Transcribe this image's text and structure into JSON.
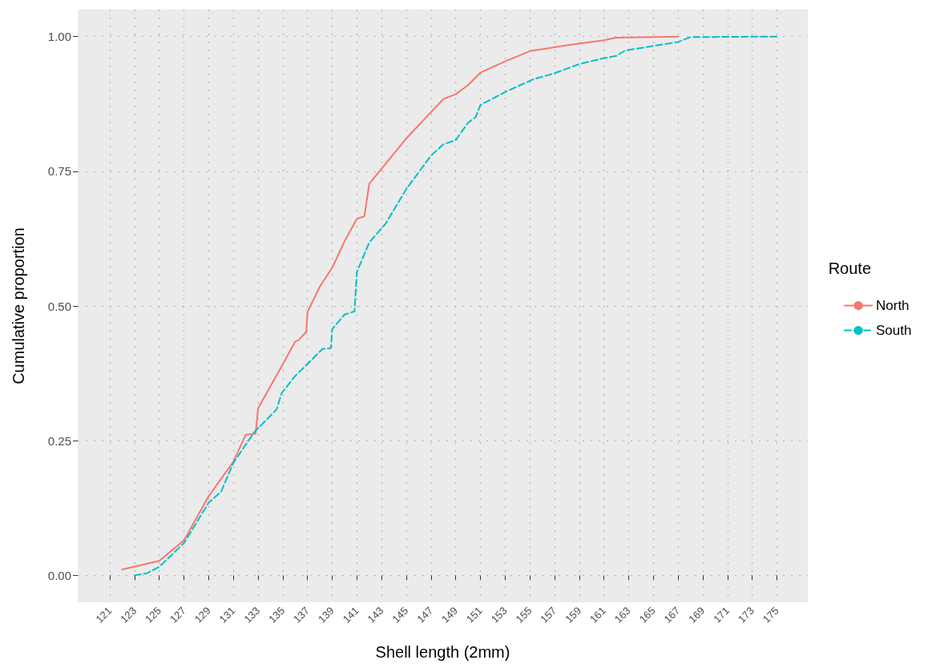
{
  "chart_data": {
    "type": "line",
    "xlabel": "Shell length (2mm)",
    "ylabel": "Cumulative proportion",
    "legend_title": "Route",
    "legend": "right",
    "grid": true,
    "marker": "none",
    "xlim": [
      118.4,
      177.5
    ],
    "xticks": [
      121,
      123,
      125,
      127,
      129,
      131,
      133,
      135,
      137,
      139,
      141,
      143,
      145,
      147,
      149,
      151,
      153,
      155,
      157,
      159,
      161,
      163,
      165,
      167,
      169,
      171,
      173,
      175
    ],
    "ylim": [
      -0.05,
      1.05
    ],
    "yticks": [
      {
        "value": 0,
        "label": "0.00"
      },
      {
        "value": 0.25,
        "label": "0.25"
      },
      {
        "value": 0.5,
        "label": "0.50"
      },
      {
        "value": 0.75,
        "label": "0.75"
      },
      {
        "value": 1,
        "label": "1.00"
      }
    ],
    "series": [
      {
        "name": "North",
        "color": "#f8766d",
        "line_style": "solid",
        "x": [
          122,
          125,
          127,
          129,
          131,
          132,
          132.8,
          133,
          135,
          136,
          136.3,
          136.9,
          137,
          138,
          139,
          140,
          141,
          141.6,
          142,
          145,
          148,
          149,
          150,
          151,
          153,
          155,
          157,
          158,
          161,
          162,
          167
        ],
        "values": [
          0.011,
          0.027,
          0.065,
          0.147,
          0.211,
          0.261,
          0.263,
          0.31,
          0.392,
          0.434,
          0.437,
          0.452,
          0.489,
          0.536,
          0.571,
          0.62,
          0.662,
          0.666,
          0.727,
          0.811,
          0.884,
          0.893,
          0.91,
          0.933,
          0.954,
          0.973,
          0.98,
          0.984,
          0.993,
          0.998,
          1.0
        ]
      },
      {
        "name": "South",
        "color": "#00bfc4",
        "line_style": "dashed",
        "x": [
          123,
          124,
          125,
          127,
          129,
          130,
          131,
          132.7,
          134.5,
          134.9,
          136,
          136.9,
          138.2,
          138.9,
          139,
          140,
          140.8,
          141,
          142,
          143.3,
          145,
          147,
          148,
          149,
          150,
          150.6,
          151,
          153,
          155.2,
          157,
          159,
          161,
          162,
          162.7,
          167,
          168,
          175
        ],
        "values": [
          0,
          0.004,
          0.016,
          0.06,
          0.135,
          0.155,
          0.209,
          0.266,
          0.308,
          0.338,
          0.37,
          0.39,
          0.42,
          0.422,
          0.457,
          0.484,
          0.49,
          0.563,
          0.618,
          0.652,
          0.717,
          0.779,
          0.8,
          0.808,
          0.84,
          0.85,
          0.873,
          0.897,
          0.92,
          0.932,
          0.949,
          0.96,
          0.964,
          0.974,
          0.99,
          0.999,
          1.0
        ]
      }
    ]
  }
}
